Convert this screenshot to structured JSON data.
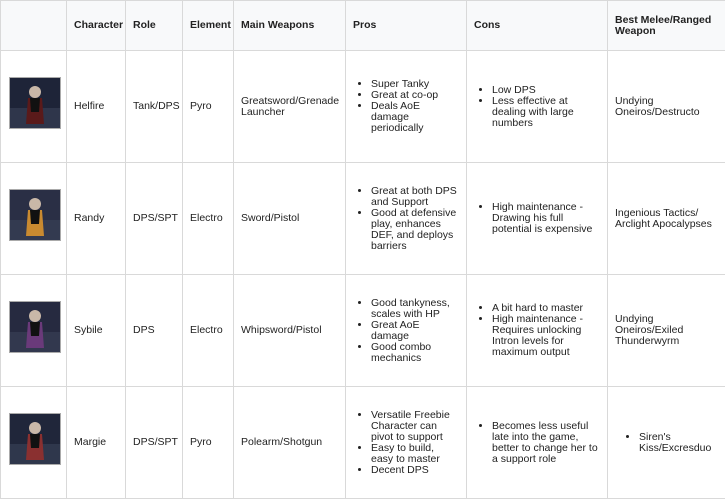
{
  "headers": [
    "",
    "Character",
    "Role",
    "Element",
    "Main Weapons",
    "Pros",
    "Cons",
    "Best Melee/Ranged Weapon"
  ],
  "rows": [
    {
      "portrait_colors": [
        "#1e2438",
        "#5a1a1a"
      ],
      "character": "Helfire",
      "role": "Tank/DPS",
      "element": "Pyro",
      "weapons": "Greatsword/Grenade Launcher",
      "pros": [
        "Super Tanky",
        "Great at co-op",
        "Deals AoE damage periodically"
      ],
      "cons": [
        "Low DPS",
        "Less effective at dealing with large numbers"
      ],
      "best": "Undying Oneiros/Destructo",
      "best_is_list": false
    },
    {
      "portrait_colors": [
        "#2a2f45",
        "#c98a30"
      ],
      "character": "Randy",
      "role": "DPS/SPT",
      "element": "Electro",
      "weapons": "Sword/Pistol",
      "pros": [
        "Great at both DPS and Support",
        "Good at defensive play, enhances DEF, and deploys barriers"
      ],
      "cons": [
        "High maintenance - Drawing his full potential is expensive"
      ],
      "best": "Ingenious Tactics/ Arclight Apocalypses",
      "best_is_list": false
    },
    {
      "portrait_colors": [
        "#262a40",
        "#6a3a7a"
      ],
      "character": "Sybile",
      "role": "DPS",
      "element": "Electro",
      "weapons": "Whipsword/Pistol",
      "pros": [
        "Good tankyness, scales with HP",
        "Great AoE damage",
        "Good combo mechanics"
      ],
      "cons": [
        "A bit hard to master",
        "High maintenance - Requires unlocking Intron levels for maximum output"
      ],
      "best": "Undying Oneiros/Exiled Thunderwyrm",
      "best_is_list": false
    },
    {
      "portrait_colors": [
        "#20263a",
        "#8a3030"
      ],
      "character": "Margie",
      "role": "DPS/SPT",
      "element": "Pyro",
      "weapons": "Polearm/Shotgun",
      "pros": [
        "Versatile Freebie Character can pivot to support",
        "Easy to build, easy to master",
        "Decent DPS"
      ],
      "cons": [
        "Becomes less useful late into the game, better to change her to a support role"
      ],
      "best": "Siren's Kiss/Excresduo",
      "best_is_list": true
    }
  ]
}
